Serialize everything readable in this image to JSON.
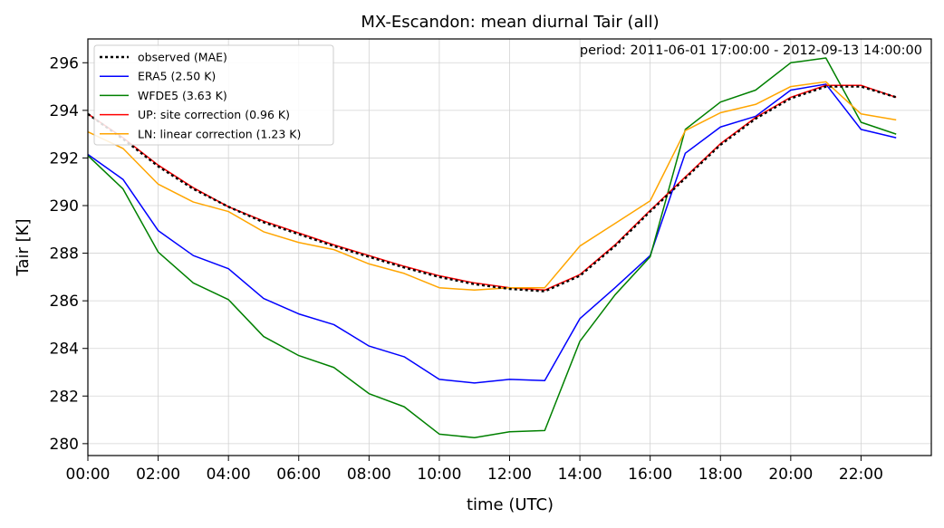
{
  "chart_data": {
    "type": "line",
    "title": "MX-Escandon: mean diurnal Tair (all)",
    "xlabel": "time (UTC)",
    "ylabel": "Tair [K]",
    "annotation": "period: 2011-06-01 17:00:00 - 2012-09-13 14:00:00",
    "xlim": [
      0,
      24
    ],
    "ylim": [
      279.5,
      297
    ],
    "grid": true,
    "legend_position": "top-left",
    "x_ticks": [
      0,
      2,
      4,
      6,
      8,
      10,
      12,
      14,
      16,
      18,
      20,
      22
    ],
    "x_tick_labels": [
      "00:00",
      "02:00",
      "04:00",
      "06:00",
      "08:00",
      "10:00",
      "12:00",
      "14:00",
      "16:00",
      "18:00",
      "20:00",
      "22:00"
    ],
    "y_ticks": [
      280,
      282,
      284,
      286,
      288,
      290,
      292,
      294,
      296
    ],
    "y_tick_labels": [
      "280",
      "282",
      "284",
      "286",
      "288",
      "290",
      "292",
      "294",
      "296"
    ],
    "x": [
      0,
      1,
      2,
      3,
      4,
      5,
      6,
      7,
      8,
      9,
      10,
      11,
      12,
      13,
      14,
      15,
      16,
      17,
      18,
      19,
      20,
      21,
      22,
      23
    ],
    "series": [
      {
        "name": "ERA5 (2.50 K)",
        "color": "#0000ff",
        "style": "solid",
        "values": [
          292.15,
          291.1,
          288.95,
          287.9,
          287.35,
          286.1,
          285.45,
          285.0,
          284.1,
          283.65,
          282.7,
          282.55,
          282.7,
          282.65,
          285.25,
          286.55,
          287.9,
          292.2,
          293.3,
          293.75,
          294.85,
          295.1,
          293.2,
          292.85
        ]
      },
      {
        "name": "WFDE5 (3.63 K)",
        "color": "#008000",
        "style": "solid",
        "values": [
          292.1,
          290.7,
          288.05,
          286.75,
          286.05,
          284.5,
          283.7,
          283.2,
          282.1,
          281.55,
          280.4,
          280.25,
          280.5,
          280.55,
          284.3,
          286.25,
          287.85,
          293.2,
          294.35,
          294.85,
          296.0,
          296.2,
          293.5,
          293.0
        ]
      },
      {
        "name": "UP: site correction (0.96 K)",
        "color": "#ff0000",
        "style": "solid",
        "values": [
          293.85,
          292.85,
          291.7,
          290.75,
          289.95,
          289.35,
          288.85,
          288.35,
          287.9,
          287.45,
          287.05,
          286.75,
          286.55,
          286.45,
          287.1,
          288.35,
          289.8,
          291.2,
          292.6,
          293.7,
          294.55,
          295.05,
          295.05,
          294.55
        ]
      },
      {
        "name": "LN: linear correction (1.23 K)",
        "color": "#ffa500",
        "style": "solid",
        "values": [
          293.1,
          292.4,
          290.9,
          290.15,
          289.75,
          288.9,
          288.45,
          288.15,
          287.55,
          287.15,
          286.55,
          286.45,
          286.55,
          286.55,
          288.3,
          289.25,
          290.2,
          293.15,
          293.9,
          294.25,
          295.0,
          295.2,
          293.85,
          293.6
        ]
      },
      {
        "name": "observed (MAE)",
        "color": "#000000",
        "style": "dotted",
        "values": [
          293.85,
          292.8,
          291.65,
          290.7,
          289.95,
          289.3,
          288.8,
          288.3,
          287.85,
          287.4,
          287.0,
          286.7,
          286.5,
          286.4,
          287.05,
          288.3,
          289.75,
          291.15,
          292.55,
          293.65,
          294.5,
          295.0,
          295.0,
          294.55
        ]
      }
    ],
    "legend_order": [
      "observed (MAE)",
      "ERA5 (2.50 K)",
      "WFDE5 (3.63 K)",
      "UP: site correction (0.96 K)",
      "LN: linear correction (1.23 K)"
    ]
  }
}
